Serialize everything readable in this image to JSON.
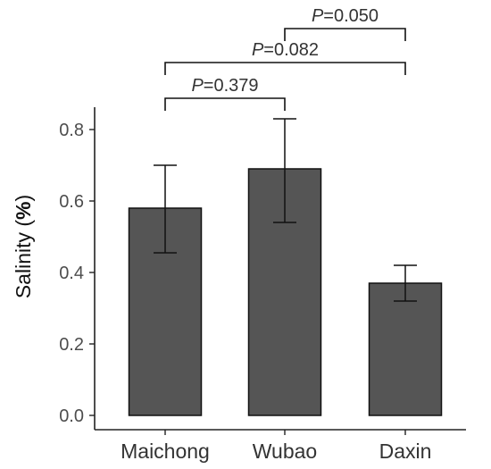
{
  "chart_data": {
    "type": "bar",
    "title": "",
    "xlabel": "",
    "ylabel_text": "Salinity (",
    "ylabel_bold": "%",
    "ylabel_close": ")",
    "categories": [
      "Maichong",
      "Wubao",
      "Daxin"
    ],
    "values": [
      0.58,
      0.69,
      0.37
    ],
    "error_upper": [
      0.7,
      0.83,
      0.42
    ],
    "error_lower": [
      0.455,
      0.54,
      0.32
    ],
    "ylim": [
      0,
      0.8
    ],
    "yticks": [
      "0.0",
      "0.2",
      "0.4",
      "0.6",
      "0.8"
    ],
    "grid": false,
    "bar_color": "#555555",
    "comparisons": [
      {
        "from": "Maichong",
        "to": "Wubao",
        "p_prefix": "P",
        "p_value": "=0.379"
      },
      {
        "from": "Maichong",
        "to": "Daxin",
        "p_prefix": "P",
        "p_value": "=0.082"
      },
      {
        "from": "Wubao",
        "to": "Daxin",
        "p_prefix": "P",
        "p_value": "=0.050"
      }
    ]
  }
}
